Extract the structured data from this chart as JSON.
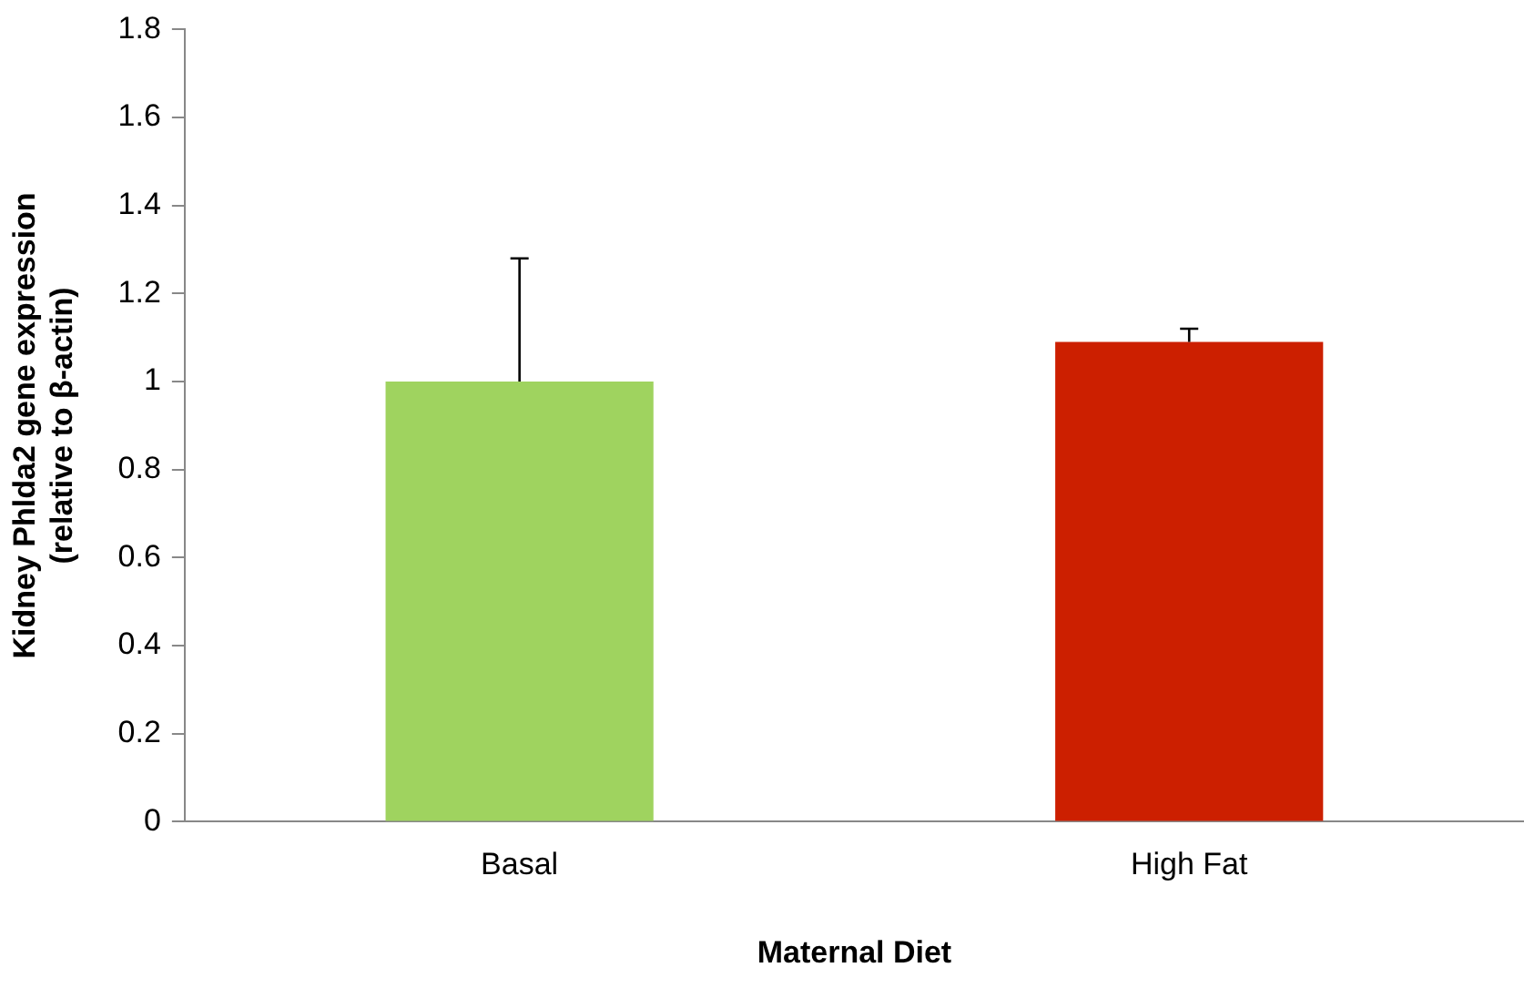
{
  "chart_data": {
    "type": "bar",
    "categories": [
      "Basal",
      "High Fat"
    ],
    "values": [
      1.0,
      1.09
    ],
    "colors": [
      "#9fd35f",
      "#cc1f00"
    ],
    "errors": [
      [
        1.0,
        1.28
      ],
      [
        1.09,
        1.12
      ]
    ],
    "ylim": [
      0,
      1.8
    ],
    "yticks": [
      0,
      {
        "value": 0.2,
        "label": "0.2"
      },
      {
        "value": 0.4,
        "label": "0.4"
      },
      {
        "value": 0.6,
        "label": "0.6"
      },
      {
        "value": 0.8,
        "label": "0.8"
      },
      1,
      {
        "value": 1.2,
        "label": "1.2"
      },
      {
        "value": 1.4,
        "label": "1.4"
      },
      {
        "value": 1.6,
        "label": "1.6"
      },
      {
        "value": 1.8,
        "label": "1.8"
      }
    ],
    "xlabel": "Maternal Diet",
    "ylabel": "Kidney Phlda2 gene expression\n(relative to β-actin)",
    "grid": false,
    "legend": false
  }
}
